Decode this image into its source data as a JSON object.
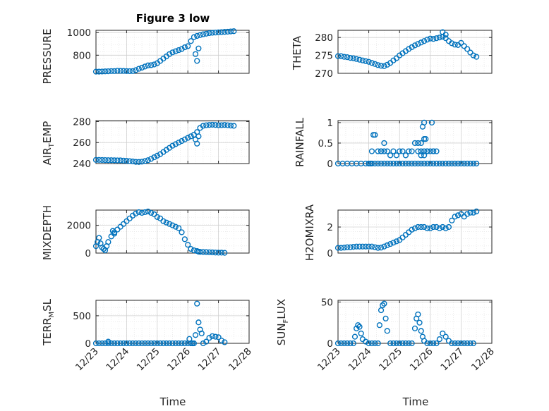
{
  "figure_title": "Figure 3 low",
  "chart_data": [
    {
      "type": "scatter",
      "ylabel": "PRESSURE",
      "yticks": [
        800,
        1000
      ],
      "ylim": [
        640,
        1020
      ],
      "xlim": [
        "12/23",
        "12/28"
      ],
      "xticks": [
        "12/23",
        "12/24",
        "12/25",
        "12/26",
        "12/27",
        "12/28"
      ],
      "x": [
        0.0,
        0.1,
        0.2,
        0.3,
        0.4,
        0.5,
        0.6,
        0.7,
        0.8,
        0.9,
        1.0,
        1.1,
        1.2,
        1.3,
        1.4,
        1.5,
        1.6,
        1.7,
        1.8,
        1.9,
        2.0,
        2.1,
        2.2,
        2.3,
        2.4,
        2.5,
        2.6,
        2.7,
        2.8,
        2.9,
        3.0,
        3.1,
        3.2,
        3.3,
        3.4,
        3.5,
        3.6,
        3.7,
        3.8,
        3.9,
        4.0,
        4.1,
        4.2,
        4.3,
        4.4,
        4.5,
        3.25,
        3.3,
        3.35
      ],
      "y": [
        655,
        655,
        656,
        657,
        658,
        660,
        660,
        663,
        662,
        661,
        660,
        659,
        660,
        668,
        680,
        690,
        700,
        710,
        712,
        718,
        730,
        750,
        770,
        790,
        810,
        825,
        835,
        845,
        855,
        870,
        880,
        925,
        960,
        970,
        978,
        985,
        990,
        995,
        998,
        1000,
        1002,
        1004,
        1006,
        1008,
        1010,
        1012,
        810,
        750,
        860
      ]
    },
    {
      "type": "scatter",
      "ylabel": "THETA",
      "yticks": [
        270,
        275,
        280
      ],
      "ylim": [
        270,
        282
      ],
      "xlim": [
        "12/23",
        "12/28"
      ],
      "xticks": [
        "12/23",
        "12/24",
        "12/25",
        "12/26",
        "12/27",
        "12/28"
      ],
      "x": [
        0.0,
        0.1,
        0.2,
        0.3,
        0.4,
        0.5,
        0.6,
        0.7,
        0.8,
        0.9,
        1.0,
        1.1,
        1.2,
        1.3,
        1.4,
        1.5,
        1.6,
        1.7,
        1.8,
        1.9,
        2.0,
        2.1,
        2.2,
        2.3,
        2.4,
        2.5,
        2.6,
        2.7,
        2.8,
        2.9,
        3.0,
        3.1,
        3.2,
        3.3,
        3.4,
        3.5,
        3.6,
        3.7,
        3.8,
        3.9,
        4.0,
        4.1,
        4.2,
        4.3,
        4.4,
        4.5,
        3.4,
        3.5
      ],
      "y": [
        274.8,
        274.8,
        274.6,
        274.5,
        274.3,
        274.2,
        274.0,
        273.8,
        273.6,
        273.4,
        273.2,
        272.9,
        272.6,
        272.3,
        272.1,
        272.0,
        272.4,
        272.9,
        273.6,
        274.2,
        275.0,
        275.6,
        276.2,
        276.8,
        277.3,
        277.8,
        278.2,
        278.6,
        279.0,
        279.4,
        279.7,
        279.6,
        279.8,
        280.0,
        280.2,
        279.8,
        279.0,
        278.4,
        278.0,
        277.9,
        278.5,
        277.6,
        276.8,
        275.8,
        275.0,
        274.6,
        281.5,
        280.8
      ]
    },
    {
      "type": "scatter",
      "ylabel": "AIR_TEMP",
      "yticks": [
        240,
        260,
        280
      ],
      "ylim": [
        240,
        281
      ],
      "xlim": [
        "12/23",
        "12/28"
      ],
      "xticks": [
        "12/23",
        "12/24",
        "12/25",
        "12/26",
        "12/27",
        "12/28"
      ],
      "x": [
        0.0,
        0.1,
        0.2,
        0.3,
        0.4,
        0.5,
        0.6,
        0.7,
        0.8,
        0.9,
        1.0,
        1.1,
        1.2,
        1.3,
        1.4,
        1.5,
        1.6,
        1.7,
        1.8,
        1.9,
        2.0,
        2.1,
        2.2,
        2.3,
        2.4,
        2.5,
        2.6,
        2.7,
        2.8,
        2.9,
        3.0,
        3.1,
        3.2,
        3.3,
        3.4,
        3.5,
        3.6,
        3.7,
        3.8,
        3.9,
        4.0,
        4.1,
        4.2,
        4.3,
        4.4,
        4.5,
        3.25,
        3.3,
        3.35
      ],
      "y": [
        243.5,
        243.5,
        243.4,
        243.3,
        243.2,
        243.2,
        243.1,
        243.0,
        243.0,
        242.8,
        242.6,
        242.3,
        242.0,
        241.6,
        241.5,
        241.8,
        242.4,
        243.2,
        244.5,
        246.0,
        247.5,
        249.0,
        251.0,
        253.0,
        255.0,
        257.0,
        258.5,
        260.0,
        261.5,
        263.0,
        264.5,
        266.0,
        267.5,
        270.0,
        274.0,
        276.0,
        276.5,
        276.8,
        277.0,
        276.8,
        276.5,
        276.6,
        276.8,
        276.5,
        276.2,
        276.0,
        263.0,
        259.0,
        266.0
      ]
    },
    {
      "type": "scatter",
      "ylabel": "RAINFALL",
      "yticks": [
        0,
        0.5,
        1
      ],
      "ylim": [
        0,
        1.05
      ],
      "xlim": [
        "12/23",
        "12/28"
      ],
      "xticks": [
        "12/23",
        "12/24",
        "12/25",
        "12/26",
        "12/27",
        "12/28"
      ],
      "x": [
        0.0,
        0.15,
        0.3,
        0.45,
        0.6,
        0.75,
        0.9,
        1.0,
        1.05,
        1.1,
        1.2,
        1.3,
        1.4,
        1.5,
        1.6,
        1.7,
        1.8,
        1.9,
        2.0,
        2.1,
        2.2,
        2.3,
        2.4,
        2.5,
        2.6,
        2.7,
        2.8,
        2.9,
        3.0,
        3.1,
        3.2,
        3.3,
        3.4,
        3.5,
        3.6,
        3.7,
        3.8,
        3.9,
        4.0,
        4.1,
        4.2,
        4.3,
        4.4,
        4.5,
        1.1,
        1.15,
        1.2,
        1.3,
        1.4,
        1.5,
        1.6,
        1.7,
        1.8,
        1.9,
        2.0,
        2.1,
        2.2,
        2.3,
        2.4,
        2.5,
        2.6,
        2.7,
        2.8,
        2.9,
        3.0,
        3.1,
        3.2,
        1.4,
        1.5,
        2.6,
        2.7,
        2.8,
        2.75,
        2.8,
        2.85,
        3.05,
        3.1,
        2.7,
        2.8,
        2.9
      ],
      "y": [
        0,
        0,
        0,
        0,
        0,
        0,
        0,
        0,
        0,
        0,
        0,
        0,
        0,
        0,
        0,
        0,
        0,
        0,
        0,
        0,
        0,
        0,
        0,
        0,
        0,
        0,
        0,
        0,
        0,
        0,
        0,
        0,
        0,
        0,
        0,
        0,
        0,
        0,
        0,
        0,
        0,
        0,
        0,
        0,
        0.3,
        0.7,
        0.7,
        0.3,
        0.3,
        0.5,
        0.3,
        0.2,
        0.3,
        0.2,
        0.3,
        0.3,
        0.2,
        0.3,
        0.3,
        0.5,
        0.5,
        0.3,
        0.3,
        0.3,
        0.3,
        0.3,
        0.3,
        0.3,
        0.3,
        0.3,
        0.5,
        1.0,
        0.9,
        0.6,
        0.6,
        1.0,
        0.3,
        0.2,
        0.2,
        0.3
      ]
    },
    {
      "type": "scatter",
      "ylabel": "MIXDEPTH",
      "yticks": [
        0,
        2000
      ],
      "ylim": [
        0,
        3100
      ],
      "xlim": [
        "12/23",
        "12/28"
      ],
      "xticks": [
        "12/23",
        "12/24",
        "12/25",
        "12/26",
        "12/27",
        "12/28"
      ],
      "x": [
        0.0,
        0.05,
        0.1,
        0.15,
        0.2,
        0.25,
        0.3,
        0.35,
        0.4,
        0.5,
        0.6,
        0.7,
        0.8,
        0.9,
        1.0,
        1.1,
        1.2,
        1.3,
        1.4,
        1.5,
        1.6,
        1.7,
        1.8,
        1.9,
        2.0,
        2.1,
        2.2,
        2.3,
        2.4,
        2.5,
        2.6,
        2.7,
        2.8,
        2.9,
        3.0,
        3.1,
        3.2,
        3.3,
        3.35,
        3.4,
        3.5,
        3.6,
        3.7,
        3.8,
        3.9,
        4.0,
        4.1,
        4.2,
        0.25,
        0.55,
        0.6
      ],
      "y": [
        500,
        800,
        1100,
        700,
        400,
        300,
        200,
        500,
        800,
        1200,
        1500,
        1700,
        1900,
        2100,
        2300,
        2500,
        2700,
        2850,
        2950,
        2900,
        2950,
        3000,
        2900,
        2800,
        2600,
        2500,
        2300,
        2200,
        2100,
        2000,
        1900,
        1800,
        1500,
        1000,
        600,
        300,
        200,
        150,
        100,
        90,
        80,
        70,
        60,
        50,
        40,
        30,
        30,
        20,
        300,
        1600,
        1400
      ]
    },
    {
      "type": "scatter",
      "ylabel": "H2OMIXRA",
      "yticks": [
        0,
        2
      ],
      "ylim": [
        0,
        3.3
      ],
      "xlim": [
        "12/23",
        "12/28"
      ],
      "xticks": [
        "12/23",
        "12/24",
        "12/25",
        "12/26",
        "12/27",
        "12/28"
      ],
      "x": [
        0.0,
        0.1,
        0.2,
        0.3,
        0.4,
        0.5,
        0.6,
        0.7,
        0.8,
        0.9,
        1.0,
        1.1,
        1.2,
        1.3,
        1.4,
        1.5,
        1.6,
        1.7,
        1.8,
        1.9,
        2.0,
        2.1,
        2.2,
        2.3,
        2.4,
        2.5,
        2.6,
        2.7,
        2.8,
        2.9,
        3.0,
        3.1,
        3.2,
        3.3,
        3.4,
        3.5,
        3.6,
        3.7,
        3.8,
        3.9,
        4.0,
        4.1,
        4.2,
        4.3,
        4.4,
        4.5
      ],
      "y": [
        0.4,
        0.4,
        0.42,
        0.45,
        0.45,
        0.48,
        0.5,
        0.5,
        0.5,
        0.5,
        0.5,
        0.5,
        0.45,
        0.4,
        0.42,
        0.5,
        0.6,
        0.7,
        0.8,
        0.9,
        1.0,
        1.2,
        1.4,
        1.6,
        1.8,
        1.9,
        2.0,
        2.0,
        2.0,
        1.9,
        1.9,
        2.0,
        2.0,
        1.9,
        2.0,
        1.9,
        2.0,
        2.5,
        2.8,
        2.9,
        3.0,
        2.8,
        3.0,
        3.1,
        3.1,
        3.2
      ]
    },
    {
      "type": "scatter",
      "ylabel": "TERR_MSL",
      "yticks": [
        0,
        500
      ],
      "ylim": [
        0,
        780
      ],
      "xlim": [
        "12/23",
        "12/28"
      ],
      "xticks": [
        "12/23",
        "12/24",
        "12/25",
        "12/26",
        "12/27",
        "12/28"
      ],
      "x": [
        0.0,
        0.1,
        0.2,
        0.3,
        0.4,
        0.5,
        0.6,
        0.7,
        0.8,
        0.9,
        1.0,
        1.1,
        1.2,
        1.3,
        1.4,
        1.5,
        1.6,
        1.7,
        1.8,
        1.9,
        2.0,
        2.1,
        2.2,
        2.3,
        2.4,
        2.5,
        2.6,
        2.7,
        2.8,
        2.9,
        3.0,
        3.05,
        3.1,
        3.15,
        3.2,
        3.25,
        3.3,
        3.35,
        3.4,
        3.45,
        3.5,
        3.6,
        3.7,
        3.8,
        3.9,
        4.0,
        4.1,
        4.2,
        0.4
      ],
      "y": [
        0,
        0,
        0,
        0,
        0,
        0,
        0,
        0,
        0,
        0,
        0,
        0,
        0,
        0,
        0,
        0,
        0,
        0,
        0,
        0,
        0,
        0,
        0,
        0,
        0,
        0,
        0,
        0,
        0,
        0,
        0,
        80,
        0,
        0,
        0,
        150,
        720,
        380,
        250,
        180,
        0,
        30,
        100,
        130,
        120,
        110,
        50,
        20,
        30
      ]
    },
    {
      "type": "scatter",
      "ylabel": "SUN_FLUX",
      "yticks": [
        0,
        50
      ],
      "ylim": [
        0,
        52
      ],
      "xlim": [
        "12/23",
        "12/28"
      ],
      "xticks": [
        "12/23",
        "12/24",
        "12/25",
        "12/26",
        "12/27",
        "12/28"
      ],
      "x": [
        0.0,
        0.1,
        0.2,
        0.3,
        0.4,
        0.5,
        0.55,
        0.6,
        0.65,
        0.7,
        0.75,
        0.8,
        0.9,
        1.0,
        1.1,
        1.2,
        1.3,
        1.35,
        1.4,
        1.45,
        1.5,
        1.55,
        1.6,
        1.7,
        1.8,
        1.9,
        2.0,
        2.1,
        2.2,
        2.3,
        2.4,
        2.5,
        2.55,
        2.6,
        2.65,
        2.7,
        2.75,
        2.8,
        2.9,
        3.0,
        3.1,
        3.2,
        3.3,
        3.4,
        3.5,
        3.6,
        3.7,
        3.8,
        3.9,
        4.0,
        4.1,
        4.2,
        4.3,
        4.4
      ],
      "y": [
        0,
        0,
        0,
        0,
        0,
        0,
        8,
        18,
        22,
        20,
        12,
        5,
        2,
        0,
        0,
        0,
        0,
        22,
        40,
        46,
        48,
        30,
        15,
        0,
        0,
        0,
        0,
        0,
        0,
        0,
        0,
        18,
        30,
        35,
        25,
        15,
        8,
        3,
        0,
        0,
        0,
        0,
        5,
        12,
        8,
        3,
        0,
        0,
        0,
        0,
        0,
        0,
        0,
        0
      ]
    }
  ],
  "colors": {
    "marker": "#0072BD",
    "axis": "#262626",
    "grid": "#d0d0d0"
  },
  "xlabels": {
    "left": "Time",
    "right": "Time"
  },
  "ylabel_parts": {
    "air_temp": {
      "main": "AIR",
      "sub": "T",
      "rest": "EMP"
    },
    "terr_msl": {
      "main": "TERR",
      "sub": "M",
      "rest": "SL"
    },
    "sun_flux": {
      "main": "SUN",
      "sub": "F",
      "rest": "LUX"
    }
  }
}
